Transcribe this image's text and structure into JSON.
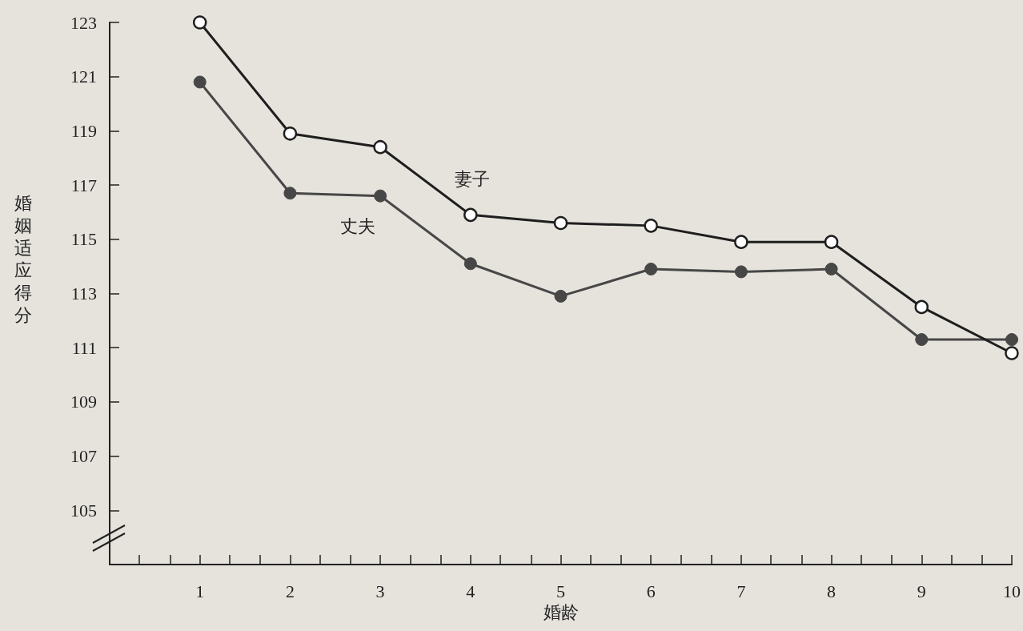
{
  "chart_data": {
    "type": "line",
    "xlabel": "婚龄",
    "ylabel": "婚姻适应得分",
    "x": [
      1,
      2,
      3,
      4,
      5,
      6,
      7,
      8,
      9,
      10
    ],
    "series": [
      {
        "name": "妻子",
        "color": "#1e1e1e",
        "values": [
          123,
          118.9,
          118.4,
          115.9,
          115.6,
          115.5,
          114.9,
          114.9,
          112.5,
          110.8
        ]
      },
      {
        "name": "丈夫",
        "color": "#474747",
        "values": [
          120.8,
          116.7,
          116.6,
          114.1,
          112.9,
          113.9,
          113.8,
          113.9,
          111.3,
          111.3
        ]
      }
    ],
    "xlim": [
      0,
      10
    ],
    "xticks": [
      {
        "value": 0.33,
        "label": null
      },
      {
        "value": 0.67,
        "label": null
      },
      1,
      {
        "value": 1.33,
        "label": null
      },
      {
        "value": 1.67,
        "label": null
      },
      2,
      {
        "value": 2.33,
        "label": null
      },
      {
        "value": 2.67,
        "label": null
      },
      3,
      {
        "value": 3.33,
        "label": null
      },
      {
        "value": 3.67,
        "label": null
      },
      4,
      {
        "value": 4.33,
        "label": null
      },
      {
        "value": 4.67,
        "label": null
      },
      5,
      {
        "value": 5.33,
        "label": null
      },
      {
        "value": 5.67,
        "label": null
      },
      6,
      {
        "value": 6.33,
        "label": null
      },
      {
        "value": 6.67,
        "label": null
      },
      7,
      {
        "value": 7.33,
        "label": null
      },
      {
        "value": 7.67,
        "label": null
      },
      8,
      {
        "value": 8.33,
        "label": null
      },
      {
        "value": 8.67,
        "label": null
      },
      9,
      {
        "value": 9.33,
        "label": null
      },
      {
        "value": 9.67,
        "label": null
      },
      10
    ],
    "ylim": [
      103,
      123
    ],
    "yticks": [
      105,
      107,
      109,
      111,
      113,
      115,
      117,
      119,
      121,
      123
    ],
    "marker": "circle",
    "grid": false,
    "legend": false
  }
}
